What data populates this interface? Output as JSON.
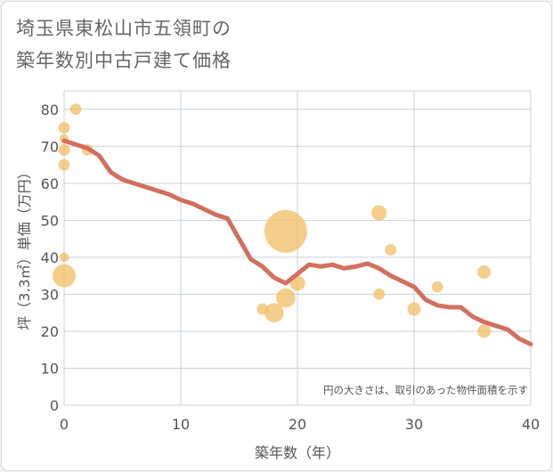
{
  "title_lines": [
    "埼玉県東松山市五領町の",
    "築年数別中古戸建て価格"
  ],
  "colors": {
    "line": "#d36f5f",
    "bubble": "#f2bd64",
    "grid": "#c9d2dc",
    "plot_bg": "#ffffff"
  },
  "chart_data": {
    "type": "scatter",
    "title": "埼玉県東松山市五領町の築年数別中古戸建て価格",
    "xlabel": "築年数（年）",
    "ylabel": "坪（3.3㎡）単価（万円）",
    "xlim": [
      0,
      40
    ],
    "ylim": [
      0,
      85
    ],
    "xticks": [
      0,
      10,
      20,
      30,
      40
    ],
    "yticks": [
      0,
      10,
      20,
      30,
      40,
      50,
      60,
      70,
      80
    ],
    "grid": true,
    "note": "円の大きさは、取引のあった物件面積を示す",
    "bubbles": [
      {
        "x": 0,
        "y": 75,
        "size": 2
      },
      {
        "x": 0,
        "y": 72,
        "size": 1.5
      },
      {
        "x": 0,
        "y": 69,
        "size": 2
      },
      {
        "x": 0,
        "y": 65,
        "size": 2
      },
      {
        "x": 0,
        "y": 40,
        "size": 1.5
      },
      {
        "x": 0,
        "y": 35,
        "size": 5
      },
      {
        "x": 1,
        "y": 80,
        "size": 2
      },
      {
        "x": 2,
        "y": 69,
        "size": 2
      },
      {
        "x": 17,
        "y": 26,
        "size": 2
      },
      {
        "x": 18,
        "y": 25,
        "size": 4
      },
      {
        "x": 19,
        "y": 47,
        "size": 10
      },
      {
        "x": 19,
        "y": 29,
        "size": 4
      },
      {
        "x": 20,
        "y": 33,
        "size": 3
      },
      {
        "x": 27,
        "y": 52,
        "size": 3
      },
      {
        "x": 27,
        "y": 30,
        "size": 2
      },
      {
        "x": 28,
        "y": 42,
        "size": 2
      },
      {
        "x": 30,
        "y": 26,
        "size": 2.5
      },
      {
        "x": 32,
        "y": 32,
        "size": 2
      },
      {
        "x": 36,
        "y": 36,
        "size": 2.5
      },
      {
        "x": 36,
        "y": 20,
        "size": 2.5
      }
    ],
    "series": [
      {
        "name": "trend",
        "x": [
          0,
          1,
          2,
          3,
          4,
          5,
          6,
          7,
          8,
          9,
          10,
          11,
          12,
          13,
          14,
          15,
          16,
          17,
          18,
          19,
          20,
          21,
          22,
          23,
          24,
          25,
          26,
          27,
          28,
          29,
          30,
          31,
          32,
          33,
          34,
          35,
          36,
          37,
          38,
          39,
          40
        ],
        "y": [
          71.5,
          70.5,
          69.5,
          67.5,
          63,
          61,
          60,
          59,
          58,
          57,
          55.5,
          54.5,
          53,
          51.5,
          50.5,
          45,
          39.5,
          37.5,
          34.5,
          33,
          35.5,
          38,
          37.5,
          38,
          37,
          37.5,
          38.3,
          37,
          35,
          33.5,
          32,
          28.5,
          27,
          26.5,
          26.5,
          24,
          22.5,
          21.5,
          20.5,
          18,
          16.5
        ]
      }
    ]
  }
}
